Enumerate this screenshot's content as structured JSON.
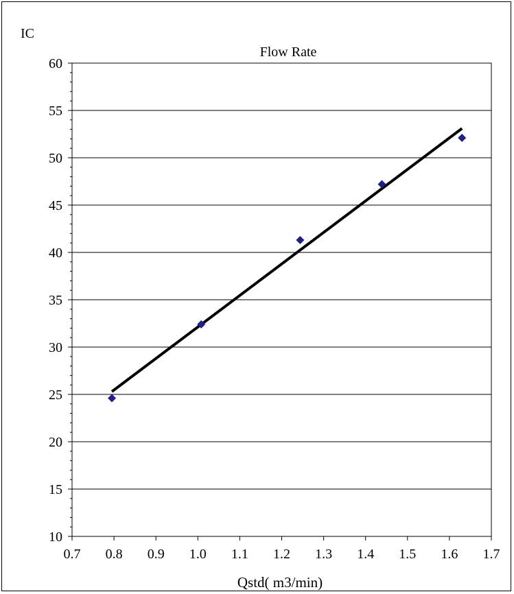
{
  "chart_data": {
    "type": "scatter",
    "title": "Flow Rate",
    "ylabel": "IC",
    "xlabel": "Qstd( m3/min)",
    "xlim": [
      0.7,
      1.7
    ],
    "ylim": [
      10,
      60
    ],
    "x_ticks": [
      "0.7",
      "0.8",
      "0.9",
      "1.0",
      "1.1",
      "1.2",
      "1.3",
      "1.4",
      "1.5",
      "1.6",
      "1.7"
    ],
    "y_ticks": [
      "10",
      "15",
      "20",
      "25",
      "30",
      "35",
      "40",
      "45",
      "50",
      "55",
      "60"
    ],
    "grid": "horizontal",
    "points": [
      {
        "x": 0.795,
        "y": 24.6
      },
      {
        "x": 1.008,
        "y": 32.4
      },
      {
        "x": 1.244,
        "y": 41.3
      },
      {
        "x": 1.439,
        "y": 47.2
      },
      {
        "x": 1.63,
        "y": 52.1
      }
    ],
    "trendline": {
      "x": [
        0.795,
        1.63
      ],
      "y": [
        25.3,
        53.1
      ]
    },
    "colors": {
      "marker": "#1f1f8f",
      "trendline": "#000000",
      "grid": "#000000"
    }
  }
}
